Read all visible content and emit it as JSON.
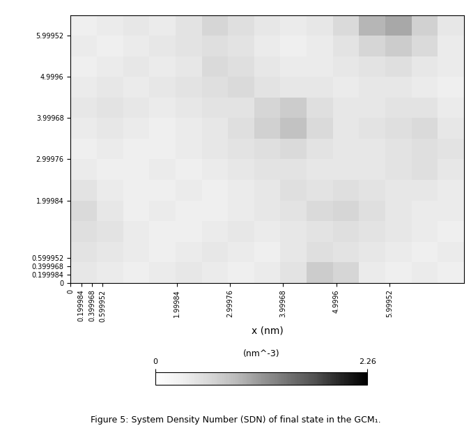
{
  "chart_data": {
    "type": "heatmap",
    "x_label": "x (nm)",
    "caption": "Figure 5: System Density Number (SDN) of final state in the GCM₁.",
    "xlim": [
      0,
      7.4
    ],
    "ylim": [
      0,
      6.5
    ],
    "xticks": [
      0,
      0.199984,
      0.399968,
      0.599952,
      1.99984,
      2.99976,
      3.99968,
      4.9996,
      5.99952
    ],
    "yticks": [
      0,
      0.199984,
      0.399968,
      0.599952,
      1.99984,
      2.99976,
      3.99968,
      4.9996,
      5.99952
    ],
    "color": "Greys",
    "colorbar_label": "(nm^-3)",
    "colorbar_range": [
      0,
      2.26
    ],
    "colorbar_ticks": [
      0,
      2.26
    ],
    "cells": [
      [
        0.4,
        0.35,
        0.3,
        0.35,
        0.4,
        0.35,
        0.3,
        0.35,
        0.45,
        0.7,
        0.6,
        0.35,
        0.3,
        0.35,
        0.3
      ],
      [
        0.45,
        0.4,
        0.35,
        0.3,
        0.35,
        0.4,
        0.35,
        0.3,
        0.4,
        0.5,
        0.45,
        0.4,
        0.35,
        0.3,
        0.35
      ],
      [
        0.5,
        0.45,
        0.35,
        0.3,
        0.3,
        0.35,
        0.4,
        0.35,
        0.4,
        0.45,
        0.5,
        0.45,
        0.4,
        0.35,
        0.3
      ],
      [
        0.55,
        0.4,
        0.3,
        0.35,
        0.3,
        0.3,
        0.35,
        0.4,
        0.45,
        0.55,
        0.6,
        0.5,
        0.4,
        0.35,
        0.35
      ],
      [
        0.45,
        0.35,
        0.3,
        0.3,
        0.35,
        0.3,
        0.35,
        0.4,
        0.5,
        0.45,
        0.5,
        0.45,
        0.4,
        0.4,
        0.35
      ],
      [
        0.35,
        0.3,
        0.3,
        0.35,
        0.3,
        0.35,
        0.4,
        0.45,
        0.45,
        0.4,
        0.4,
        0.4,
        0.45,
        0.5,
        0.4
      ],
      [
        0.3,
        0.35,
        0.3,
        0.3,
        0.35,
        0.4,
        0.45,
        0.5,
        0.55,
        0.45,
        0.4,
        0.4,
        0.45,
        0.5,
        0.45
      ],
      [
        0.35,
        0.4,
        0.35,
        0.3,
        0.35,
        0.4,
        0.5,
        0.65,
        0.8,
        0.55,
        0.4,
        0.45,
        0.5,
        0.55,
        0.4
      ],
      [
        0.4,
        0.45,
        0.4,
        0.35,
        0.4,
        0.45,
        0.45,
        0.6,
        0.7,
        0.5,
        0.4,
        0.4,
        0.45,
        0.45,
        0.35
      ],
      [
        0.35,
        0.4,
        0.35,
        0.4,
        0.45,
        0.5,
        0.55,
        0.45,
        0.4,
        0.4,
        0.35,
        0.4,
        0.4,
        0.35,
        0.3
      ],
      [
        0.3,
        0.35,
        0.4,
        0.35,
        0.4,
        0.55,
        0.5,
        0.4,
        0.35,
        0.35,
        0.4,
        0.45,
        0.5,
        0.4,
        0.35
      ],
      [
        0.35,
        0.3,
        0.35,
        0.4,
        0.45,
        0.5,
        0.45,
        0.35,
        0.3,
        0.35,
        0.45,
        0.6,
        0.7,
        0.55,
        0.35
      ],
      [
        0.3,
        0.35,
        0.4,
        0.35,
        0.45,
        0.6,
        0.5,
        0.4,
        0.35,
        0.4,
        0.55,
        0.9,
        1.0,
        0.65,
        0.4
      ]
    ]
  }
}
